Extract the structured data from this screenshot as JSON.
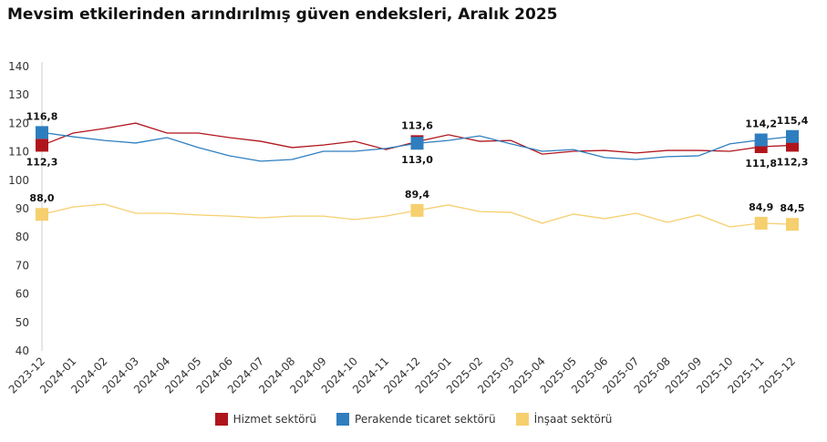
{
  "chart_data": {
    "type": "line",
    "title": "Mevsim etkilerinden arındırılmış güven endeksleri, Aralık 2025",
    "xlabel": "",
    "ylabel": "",
    "ylim": [
      40,
      140
    ],
    "yticks": [
      40,
      50,
      60,
      70,
      80,
      90,
      100,
      110,
      120,
      130,
      140
    ],
    "grid": false,
    "legend": "bottom",
    "categories": [
      "2023-12",
      "2024-01",
      "2024-02",
      "2024-03",
      "2024-04",
      "2024-05",
      "2024-06",
      "2024-07",
      "2024-08",
      "2024-09",
      "2024-10",
      "2024-11",
      "2024-12",
      "2025-01",
      "2025-02",
      "2025-03",
      "2025-04",
      "2025-05",
      "2025-06",
      "2025-07",
      "2025-08",
      "2025-09",
      "2025-10",
      "2025-11",
      "2025-12"
    ],
    "series": [
      {
        "name": "Hizmet sektörü",
        "color": "#b0151c",
        "values": [
          112.3,
          116.6,
          118.2,
          120.1,
          116.6,
          116.6,
          115.0,
          113.7,
          111.5,
          112.4,
          113.7,
          110.8,
          113.6,
          116.0,
          113.7,
          114.0,
          109.2,
          110.2,
          110.5,
          109.6,
          110.5,
          110.5,
          110.2,
          111.8,
          112.3
        ],
        "labels": {
          "0": "112,3",
          "12": "113,6",
          "23": "111,8",
          "24": "112,3"
        }
      },
      {
        "name": "Perakende ticaret sektörü",
        "color": "#2e7ebf",
        "values": [
          116.8,
          115.3,
          114.0,
          113.1,
          115.0,
          111.5,
          108.6,
          106.7,
          107.3,
          110.2,
          110.2,
          111.2,
          113.0,
          114.0,
          115.6,
          112.8,
          110.2,
          110.8,
          108.0,
          107.3,
          108.3,
          108.6,
          112.8,
          114.2,
          115.4
        ],
        "labels": {
          "0": "116,8",
          "12": "113,0",
          "23": "114,2",
          "24": "115,4"
        }
      },
      {
        "name": "İnşaat sektörü",
        "color": "#f6cf6e",
        "values": [
          88.0,
          90.6,
          91.6,
          88.4,
          88.4,
          87.8,
          87.4,
          86.8,
          87.4,
          87.4,
          86.2,
          87.4,
          89.4,
          91.3,
          89.0,
          88.7,
          84.9,
          88.1,
          86.5,
          88.4,
          85.2,
          87.8,
          83.6,
          84.9,
          84.5
        ],
        "labels": {
          "0": "88,0",
          "12": "89,4",
          "23": "84,9",
          "24": "84,5"
        }
      }
    ]
  }
}
